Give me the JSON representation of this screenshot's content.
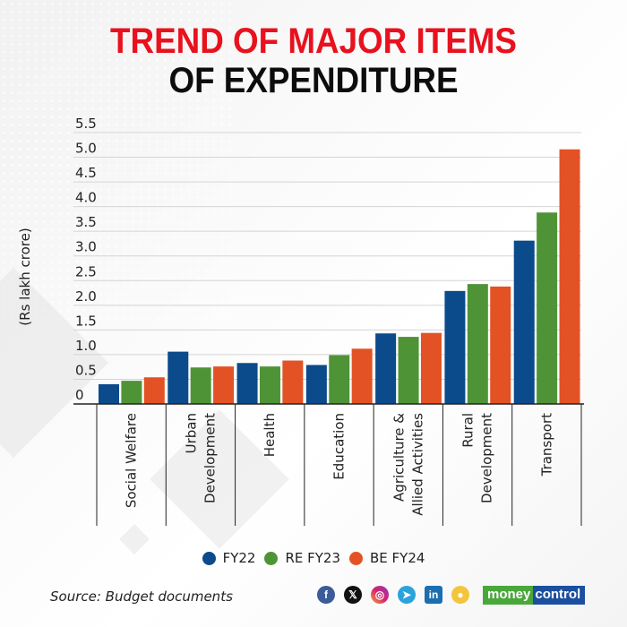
{
  "header": {
    "title_line1": "TREND OF MAJOR ITEMS",
    "title_line2": "OF EXPENDITURE"
  },
  "footer": {
    "source": "Source: Budget documents",
    "social_icons": [
      "facebook-icon",
      "x-icon",
      "instagram-icon",
      "telegram-icon",
      "linkedin-icon",
      "koo-icon"
    ],
    "brand_part1": "money",
    "brand_part2": "control"
  },
  "colors": {
    "title_red": "#e8121e",
    "fy22": "#0b4a8b",
    "re_fy23": "#4e9436",
    "be_fy24": "#e35224"
  },
  "chart_data": {
    "type": "bar",
    "title": "TREND OF MAJOR ITEMS OF EXPENDITURE",
    "xlabel": "",
    "ylabel": "(Rs lakh crore)",
    "ylim": [
      0,
      5.5
    ],
    "yticks": [
      "0",
      "0.5",
      "1.0",
      "1.5",
      "2.0",
      "2.5",
      "3.0",
      "3.5",
      "4.0",
      "4.5",
      "5.0",
      "5.5"
    ],
    "ytick_values": [
      0,
      0.5,
      1.0,
      1.5,
      2.0,
      2.5,
      3.0,
      3.5,
      4.0,
      4.5,
      5.0,
      5.5
    ],
    "grid": true,
    "legend_position": "bottom-center",
    "categories": [
      [
        "Social Welfare"
      ],
      [
        "Urban",
        "Development"
      ],
      [
        "Health"
      ],
      [
        "Education"
      ],
      [
        "Agriculture &",
        "Allied Activities"
      ],
      [
        "Rural",
        "Development"
      ],
      [
        "Transport"
      ]
    ],
    "series": [
      {
        "name": "FY22",
        "color": "#0b4a8b",
        "values": [
          0.4,
          1.06,
          0.83,
          0.79,
          1.43,
          2.29,
          3.31
        ]
      },
      {
        "name": "RE FY23",
        "color": "#4e9436",
        "values": [
          0.47,
          0.74,
          0.76,
          0.99,
          1.36,
          2.43,
          3.88
        ]
      },
      {
        "name": "BE FY24",
        "color": "#e35224",
        "values": [
          0.54,
          0.76,
          0.88,
          1.12,
          1.44,
          2.38,
          5.16
        ]
      }
    ]
  }
}
